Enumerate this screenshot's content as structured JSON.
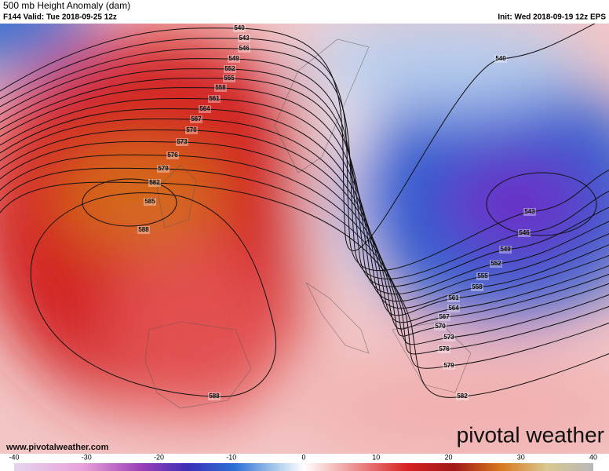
{
  "header": {
    "title": "500 mb Height Anomaly (dam)",
    "valid": "F144 Valid: Tue 2018-09-25 12z",
    "init": "Init: Wed 2018-09-19 12z EPS"
  },
  "contour_labels": [
    540,
    543,
    546,
    549,
    552,
    555,
    558,
    561,
    564,
    567,
    570,
    573,
    576,
    579,
    582,
    585,
    588,
    588,
    540,
    543,
    546,
    549,
    552,
    555,
    558,
    561,
    564,
    567,
    570,
    573,
    576,
    579,
    582
  ],
  "website": "www.pivotalweather.com",
  "brand": "pivotal weather",
  "colorbar": {
    "ticks": [
      -40,
      -30,
      -20,
      -10,
      0,
      10,
      20,
      30,
      40
    ]
  }
}
